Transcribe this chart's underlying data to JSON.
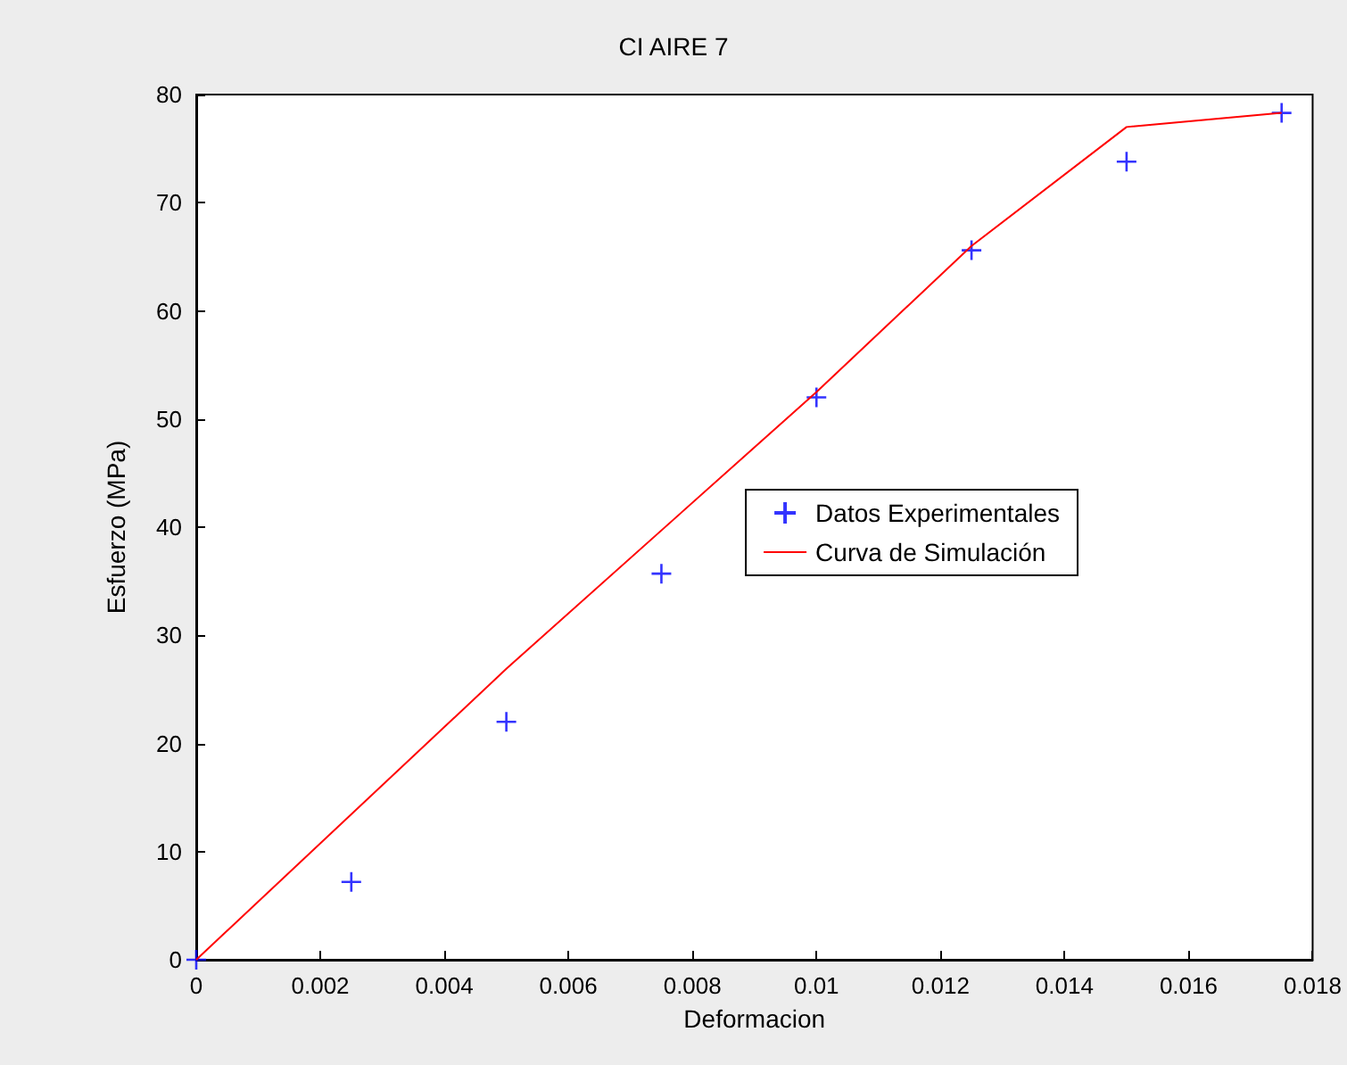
{
  "chart_data": {
    "type": "scatter",
    "title": "CI AIRE 7",
    "xlabel": "Deformacion",
    "ylabel": "Esfuerzo (MPa)",
    "xlim": [
      0,
      0.018
    ],
    "xticks": [
      0,
      0.002,
      0.004,
      0.006,
      0.008,
      0.01,
      0.012,
      0.014,
      0.016,
      0.018
    ],
    "ylim": [
      0,
      80
    ],
    "yticks": [
      0,
      10,
      20,
      30,
      40,
      50,
      60,
      70,
      80
    ],
    "grid": false,
    "legend": "right",
    "marker": "cross",
    "series": [
      {
        "name": "Datos Experimentales",
        "color": "#0000ff",
        "x": [
          0,
          0.0025,
          0.005,
          0.0075,
          0.01,
          0.0125,
          0.015,
          0.0175
        ],
        "values": [
          0,
          7.2,
          22,
          35.7,
          52,
          65.6,
          73.8,
          78.3
        ]
      },
      {
        "name": "Curva de Simulación",
        "color": "#ff0000",
        "type": "line",
        "marker": "none",
        "line_style": "solid",
        "x": [
          0,
          0.005,
          0.01,
          0.0125,
          0.015,
          0.0175
        ],
        "values": [
          0,
          26.9,
          52.5,
          66,
          77,
          78.3
        ]
      }
    ]
  }
}
